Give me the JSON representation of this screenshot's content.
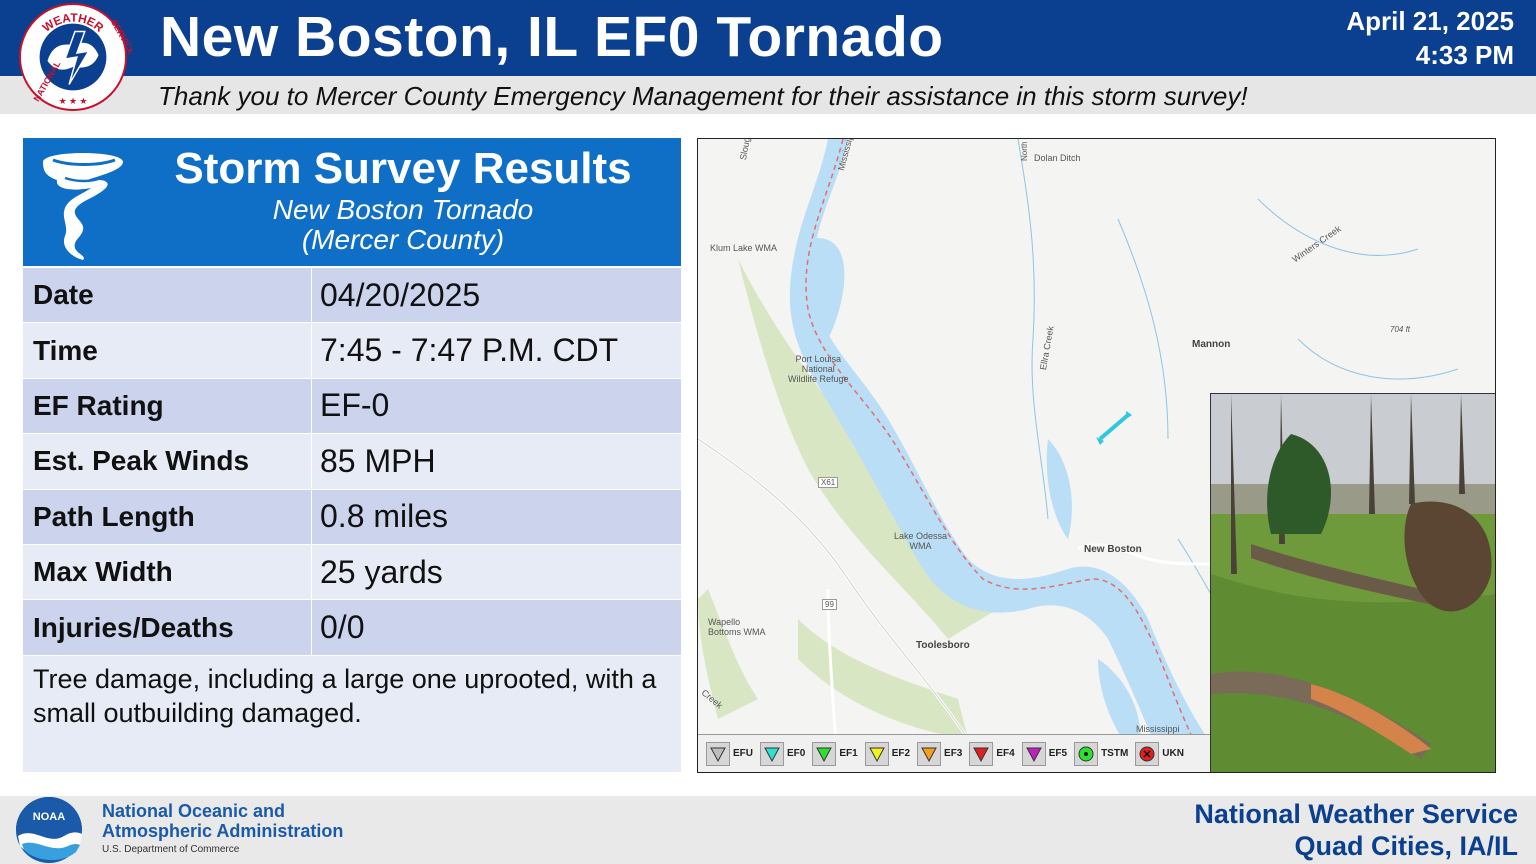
{
  "header": {
    "title": "New Boston, IL EF0 Tornado",
    "date": "April 21, 2025",
    "time": "4:33 PM",
    "thanks": "Thank you to Mercer County Emergency Management for their assistance in this storm survey!",
    "logo_text_top": "WEATHER",
    "logo_text_left": "NATIONAL",
    "logo_text_right": "SERVICE"
  },
  "panel": {
    "title": "Storm Survey Results",
    "subtitle1": "New Boston Tornado",
    "subtitle2": "(Mercer County)",
    "rows": [
      {
        "key": "Date",
        "value": "04/20/2025"
      },
      {
        "key": "Time",
        "value": "7:45 - 7:47 P.M. CDT"
      },
      {
        "key": "EF Rating",
        "value": "EF-0"
      },
      {
        "key": "Est. Peak Winds",
        "value": "85 MPH"
      },
      {
        "key": "Path Length",
        "value": "0.8 miles"
      },
      {
        "key": "Max Width",
        "value": "25 yards"
      },
      {
        "key": "Injuries/Deaths",
        "value": "0/0"
      }
    ],
    "description": "Tree damage, including a large one uprooted, with a small outbuilding damaged."
  },
  "map": {
    "labels": {
      "dolan_ditch": "Dolan Ditch",
      "klum_lake": "Klum Lake WMA",
      "port_louisa1": "Port Louisa",
      "port_louisa2": "National",
      "port_louisa3": "Wildlife Refuge",
      "mannon": "Mannon",
      "x61": "X61",
      "lake_odessa1": "Lake Odessa",
      "lake_odessa2": "WMA",
      "new_boston": "New Boston",
      "wapello1": "Wapello",
      "wapello2": "Bottoms WMA",
      "toolesboro": "Toolesboro",
      "hwy99": "99",
      "mississippi_top": "Mississippi",
      "mississippi_bottom": "Mississippi",
      "winters_creek": "Winters Creek",
      "elk_creek": "Ellra Creek",
      "elevation": "704 ft",
      "creek": "Creek",
      "slough": "Slough",
      "north": "North"
    },
    "legend": [
      {
        "label": "EFU",
        "color": "#bdbdbd",
        "shape": "triangle"
      },
      {
        "label": "EF0",
        "color": "#2fe0d0",
        "shape": "triangle"
      },
      {
        "label": "EF1",
        "color": "#2ee02e",
        "shape": "triangle"
      },
      {
        "label": "EF2",
        "color": "#f2f21f",
        "shape": "triangle"
      },
      {
        "label": "EF3",
        "color": "#f0a020",
        "shape": "triangle"
      },
      {
        "label": "EF4",
        "color": "#e02020",
        "shape": "triangle"
      },
      {
        "label": "EF5",
        "color": "#c020c0",
        "shape": "triangle"
      },
      {
        "label": "TSTM",
        "color": "#2ee02e",
        "shape": "dot"
      },
      {
        "label": "UKN",
        "color": "#e02020",
        "shape": "x"
      }
    ],
    "path_color": "#2fc8e0"
  },
  "footer": {
    "noaa_line1": "National Oceanic and",
    "noaa_line2": "Atmospheric Administration",
    "noaa_line3": "U.S. Department of Commerce",
    "noaa_logo_text": "NOAA",
    "nws_line1": "National Weather Service",
    "nws_line2": "Quad Cities, IA/IL"
  },
  "colors": {
    "header_blue": "#0b3f8f",
    "panel_blue": "#0f6fc6",
    "row_dark": "#cbd4ec",
    "row_light": "#e7ebf6"
  }
}
